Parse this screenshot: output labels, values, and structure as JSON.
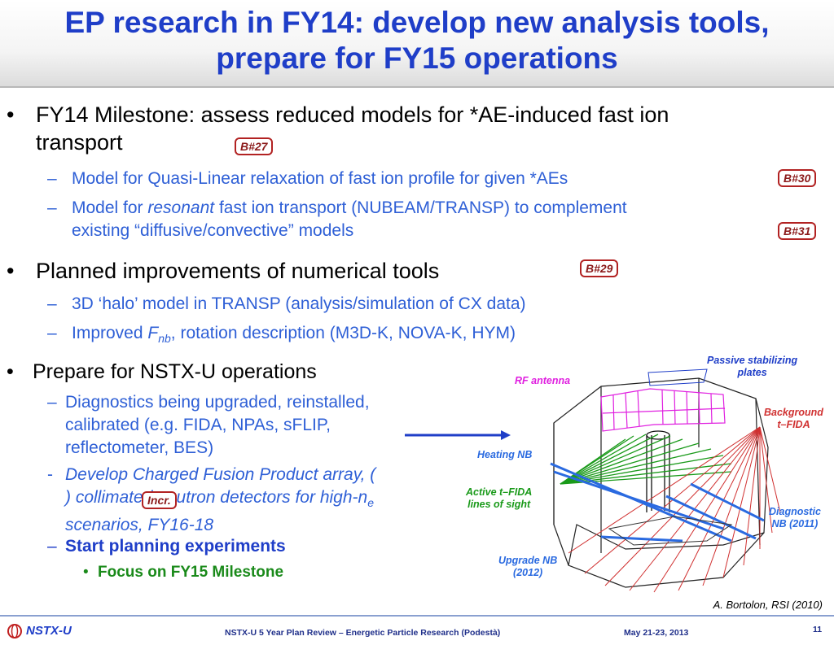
{
  "title": {
    "line1": "EP research in FY14: develop new analysis tools,",
    "line2": "prepare for FY15 operations"
  },
  "bullets": {
    "b1": {
      "bullet": "•",
      "text1": "FY14 Milestone: assess reduced models for *AE-induced fast ion",
      "text2": "transport"
    },
    "b1a": {
      "dash": "–",
      "text": "Model for Quasi-Linear relaxation of fast ion profile for given *AEs"
    },
    "b1b": {
      "dash": "–",
      "pre": "Model for ",
      "em": "resonant",
      "post": " fast ion transport (NUBEAM/TRANSP) to complement",
      "text2": "existing “diffusive/convective” models"
    },
    "b2": {
      "bullet": "•",
      "text": "Planned improvements of numerical tools"
    },
    "b2a": {
      "dash": "–",
      "text": "3D ‘halo’ model in TRANSP (analysis/simulation of CX data)"
    },
    "b2b": {
      "dash": "–",
      "pre": "Improved ",
      "em": "F",
      "sub": "nb",
      "post": ", rotation description (M3D-K, NOVA-K, HYM)"
    },
    "b3": {
      "bullet": "•",
      "text": "Prepare for NSTX-U operations"
    },
    "b3a": {
      "dash": "–",
      "text1": "Diagnostics being upgraded, reinstalled,",
      "text2": "calibrated (e.g. FIDA, NPAs, sFLIP,",
      "text3": "reflectometer, BES)"
    },
    "b3b": {
      "dash": "-",
      "text1": "Develop Charged Fusion Product array, (",
      "text2a": ") collimated neutron detectors for high-n",
      "text2sub": "e",
      "text3": "scenarios, FY16-18"
    },
    "b3c": {
      "dash": "–",
      "text": "Start planning experiments"
    },
    "b3c1": {
      "bullet": "•",
      "text": "Focus on FY15 Milestone"
    }
  },
  "tags": {
    "b27": "B#27",
    "b30": "B#30",
    "b31": "B#31",
    "b29": "B#29",
    "incr": "Incr."
  },
  "figure": {
    "labels": {
      "rf_antenna": "RF antenna",
      "passive_plates_1": "Passive stabilizing",
      "passive_plates_2": "plates",
      "background_1": "Background",
      "background_2": "t–FIDA",
      "heating_nb": "Heating NB",
      "active_1": "Active t–FIDA",
      "active_2": "lines of sight",
      "diagnostic_1": "Diagnostic",
      "diagnostic_2": "NB (2011)",
      "upgrade_1": "Upgrade NB",
      "upgrade_2": "(2012)"
    },
    "credit": "A. Bortolon, RSI (2010)"
  },
  "footer": {
    "logo": "NSTX-U",
    "center": "NSTX-U 5 Year Plan Review – Energetic Particle Research (Podestà)",
    "date": "May 21-23, 2013",
    "page": "11"
  },
  "colors": {
    "title": "#1f3ec8",
    "sub_bullet": "#2e5fd6",
    "green": "#1a8a1a",
    "tag_border": "#b22222",
    "magenta": "#e020e0",
    "red": "#d03030"
  }
}
